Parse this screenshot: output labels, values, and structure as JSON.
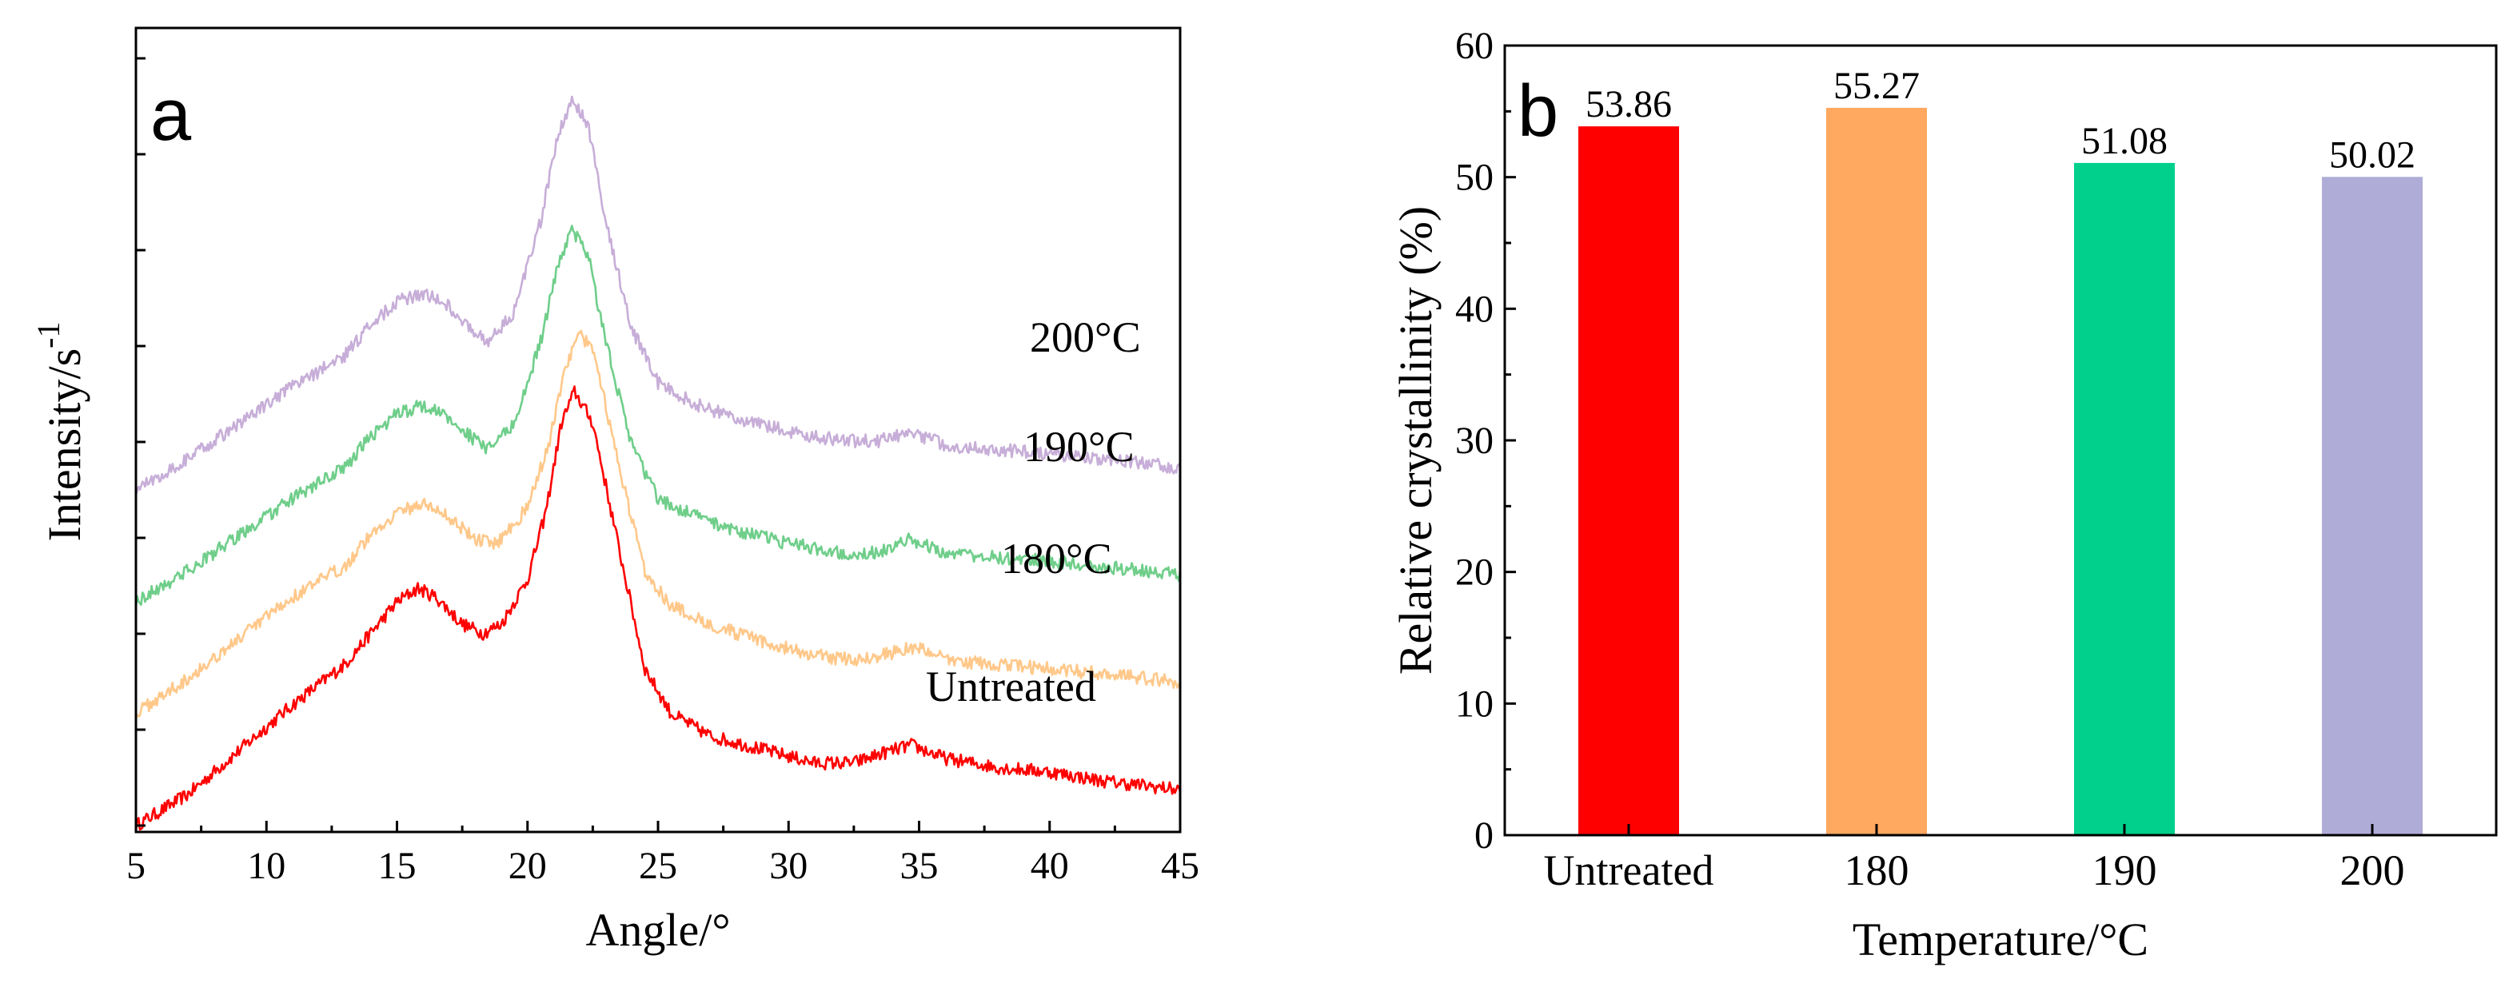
{
  "figure": {
    "panel_a_label": "a",
    "panel_b_label": "b"
  },
  "chart_data": [
    {
      "id": "panel-a",
      "type": "line",
      "title": "",
      "xlabel": "Angle/°",
      "ylabel": "Intensity/s",
      "ylabel_superscript": "-1",
      "xlim": [
        5,
        45
      ],
      "xticks": [
        5,
        10,
        15,
        20,
        25,
        30,
        35,
        40,
        45
      ],
      "yticks_labeled": false,
      "grid": false,
      "series": [
        {
          "name": "Untreated",
          "color": "#ff0000",
          "offset": 0,
          "x": [
            5,
            7,
            9,
            11,
            13,
            14,
            15,
            15.8,
            16.5,
            17.5,
            18.3,
            19,
            20,
            20.7,
            21.3,
            21.8,
            22.5,
            23.5,
            24.5,
            25.5,
            27,
            29,
            31,
            32.5,
            33.5,
            34.7,
            36,
            38,
            40,
            42,
            45
          ],
          "y": [
            0.0,
            0.07,
            0.17,
            0.27,
            0.36,
            0.43,
            0.5,
            0.53,
            0.51,
            0.45,
            0.43,
            0.45,
            0.55,
            0.7,
            0.9,
            0.97,
            0.9,
            0.62,
            0.35,
            0.25,
            0.2,
            0.17,
            0.14,
            0.14,
            0.16,
            0.18,
            0.15,
            0.13,
            0.12,
            0.1,
            0.08
          ]
        },
        {
          "name": "180°C",
          "color": "#ffc88a",
          "offset": 0.25,
          "x": [
            5,
            7,
            9,
            11,
            13,
            14,
            15,
            16,
            17,
            18,
            18.8,
            20,
            20.8,
            21.5,
            22,
            22.6,
            23.5,
            24.5,
            25.5,
            27,
            29,
            31,
            32.5,
            33.5,
            35,
            36,
            38,
            40,
            42,
            45
          ],
          "y": [
            0.0,
            0.08,
            0.17,
            0.26,
            0.33,
            0.4,
            0.45,
            0.47,
            0.44,
            0.39,
            0.38,
            0.46,
            0.6,
            0.78,
            0.85,
            0.8,
            0.55,
            0.32,
            0.24,
            0.2,
            0.16,
            0.13,
            0.12,
            0.13,
            0.15,
            0.12,
            0.11,
            0.1,
            0.09,
            0.07
          ]
        },
        {
          "name": "190°C",
          "color": "#6fce8a",
          "offset": 0.5,
          "x": [
            5,
            7,
            9,
            11,
            13,
            14,
            15,
            16,
            17,
            18,
            18.5,
            19.5,
            20.5,
            21.2,
            21.7,
            22.3,
            23,
            24,
            25,
            26.5,
            28,
            30,
            32,
            33.5,
            34.7,
            36,
            38,
            40,
            42,
            45
          ],
          "y": [
            0.0,
            0.07,
            0.15,
            0.23,
            0.3,
            0.37,
            0.42,
            0.44,
            0.41,
            0.36,
            0.34,
            0.4,
            0.58,
            0.76,
            0.83,
            0.78,
            0.58,
            0.35,
            0.23,
            0.19,
            0.16,
            0.13,
            0.11,
            0.11,
            0.14,
            0.11,
            0.1,
            0.09,
            0.08,
            0.06
          ]
        },
        {
          "name": "200°C",
          "color": "#c7aed8",
          "offset": 0.75,
          "x": [
            5,
            7,
            9,
            11,
            13,
            14,
            15,
            16,
            17,
            18,
            18.5,
            19.5,
            20.5,
            21.2,
            21.7,
            22.3,
            23,
            24,
            25,
            26.5,
            28,
            30,
            32,
            33.5,
            34.7,
            36,
            38,
            40,
            42,
            45
          ],
          "y": [
            0.0,
            0.07,
            0.15,
            0.23,
            0.3,
            0.37,
            0.42,
            0.44,
            0.41,
            0.35,
            0.33,
            0.4,
            0.6,
            0.8,
            0.87,
            0.82,
            0.6,
            0.36,
            0.24,
            0.19,
            0.16,
            0.13,
            0.11,
            0.11,
            0.13,
            0.1,
            0.09,
            0.08,
            0.07,
            0.05
          ]
        }
      ],
      "annotations": [
        "200°C",
        "190°C",
        "180°C",
        "Untreated"
      ]
    },
    {
      "id": "panel-b",
      "type": "bar",
      "title": "",
      "xlabel": "Temperature/°C",
      "ylabel": "Relative crystallinity (%)",
      "ylim": [
        0,
        60
      ],
      "yticks": [
        0,
        10,
        20,
        30,
        40,
        50,
        60
      ],
      "grid": false,
      "categories": [
        "Untreated",
        "180",
        "190",
        "200"
      ],
      "values": [
        53.86,
        55.27,
        51.08,
        50.02
      ],
      "value_labels": [
        "53.86",
        "55.27",
        "51.08",
        "50.02"
      ],
      "colors": [
        "#ff0000",
        "#ffa860",
        "#00d08c",
        "#b0acd8"
      ]
    }
  ]
}
